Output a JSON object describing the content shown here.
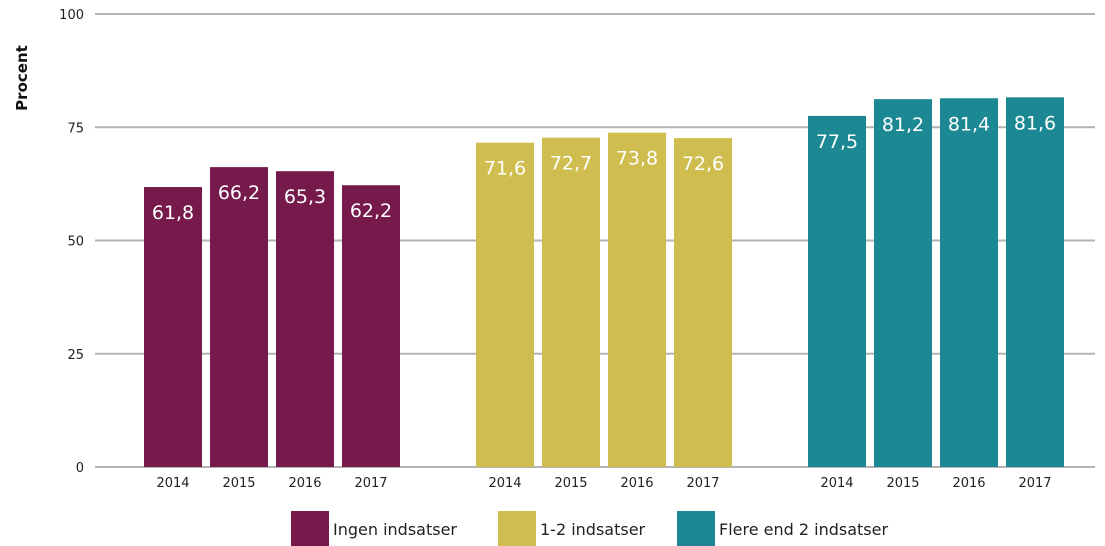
{
  "chart_data": {
    "type": "bar",
    "title": "",
    "xlabel": "",
    "ylabel": "Procent",
    "ylim": [
      0,
      100
    ],
    "yticks": [
      0,
      25,
      50,
      75,
      100
    ],
    "grid": true,
    "legend_position": "bottom",
    "groups": [
      {
        "name": "Ingen indsatser",
        "color": "#761a4b",
        "categories": [
          "2014",
          "2015",
          "2016",
          "2017"
        ],
        "values": [
          61.8,
          66.2,
          65.3,
          62.2
        ],
        "value_labels": [
          "61,8",
          "66,2",
          "65,3",
          "62,2"
        ]
      },
      {
        "name": "1-2 indsatser",
        "color": "#cfbe4f",
        "categories": [
          "2014",
          "2015",
          "2016",
          "2017"
        ],
        "values": [
          71.6,
          72.7,
          73.8,
          72.6
        ],
        "value_labels": [
          "71,6",
          "72,7",
          "73,8",
          "72,6"
        ]
      },
      {
        "name": "Flere end 2 indsatser",
        "color": "#1c8893",
        "categories": [
          "2014",
          "2015",
          "2016",
          "2017"
        ],
        "values": [
          77.5,
          81.2,
          81.4,
          81.6
        ],
        "value_labels": [
          "77,5",
          "81,2",
          "81,4",
          "81,6"
        ]
      }
    ]
  }
}
